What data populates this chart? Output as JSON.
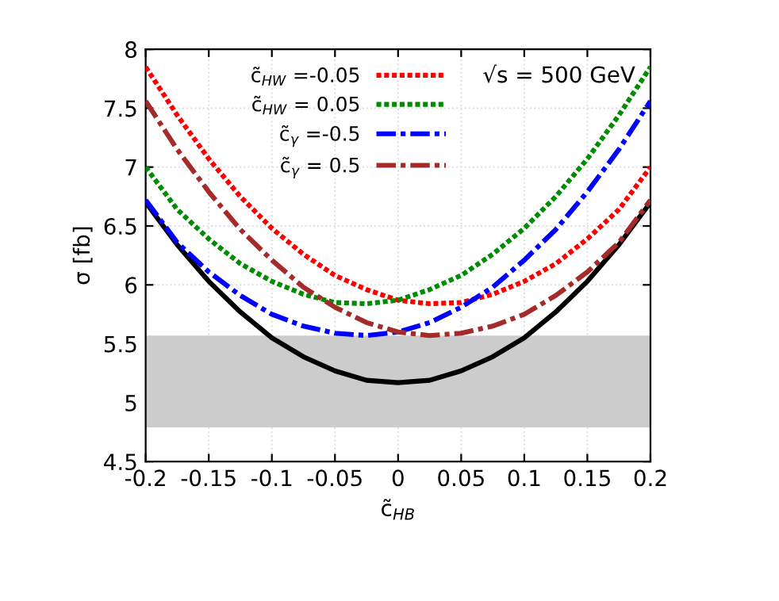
{
  "chart_data": {
    "type": "line",
    "xlabel": "c̃$_{HB}$",
    "ylabel": "σ [fb]",
    "annotations": [
      "√s = 500 GeV"
    ],
    "x": [
      -0.2,
      -0.175,
      -0.15,
      -0.125,
      -0.1,
      -0.075,
      -0.05,
      -0.025,
      0,
      0.025,
      0.05,
      0.075,
      0.1,
      0.125,
      0.15,
      0.175,
      0.2
    ],
    "series": [
      {
        "color": "#000000",
        "line_style": "solid",
        "values": [
          6.7,
          6.34,
          6.03,
          5.77,
          5.55,
          5.39,
          5.27,
          5.19,
          5.17,
          5.19,
          5.27,
          5.39,
          5.55,
          5.77,
          6.03,
          6.34,
          6.7
        ]
      },
      {
        "name": "c̃$_{HW}$ =-0.05",
        "color": "#ff0000",
        "line_style": "dotted",
        "values": [
          7.85,
          7.44,
          7.07,
          6.75,
          6.48,
          6.26,
          6.08,
          5.96,
          5.87,
          5.84,
          5.85,
          5.92,
          6.03,
          6.18,
          6.39,
          6.64,
          7.0
        ]
      },
      {
        "name": "c̃$_{HW}$ = 0.05",
        "color": "#008c00",
        "line_style": "dotted",
        "values": [
          7.0,
          6.64,
          6.39,
          6.18,
          6.03,
          5.92,
          5.85,
          5.84,
          5.87,
          5.96,
          6.08,
          6.26,
          6.48,
          6.75,
          7.07,
          7.44,
          7.85
        ]
      },
      {
        "name": "c̃$_{γ}$ =-0.5",
        "color": "#0000ff",
        "line_style": "dashdot",
        "values": [
          6.72,
          6.36,
          6.11,
          5.91,
          5.75,
          5.65,
          5.59,
          5.57,
          5.6,
          5.68,
          5.81,
          5.98,
          6.21,
          6.47,
          6.79,
          7.15,
          7.56
        ]
      },
      {
        "name": "c̃$_{γ}$ = 0.5",
        "color": "#a52a2a",
        "line_style": "dashdot",
        "values": [
          7.56,
          7.15,
          6.79,
          6.47,
          6.21,
          5.98,
          5.81,
          5.68,
          5.6,
          5.57,
          5.59,
          5.65,
          5.75,
          5.91,
          6.11,
          6.36,
          6.72
        ]
      }
    ],
    "bands": [
      {
        "axis": "y",
        "from": 4.79,
        "to": 5.57,
        "color": "#cccccc"
      }
    ],
    "xlim": [
      -0.2,
      0.2
    ],
    "xticks": [
      -0.2,
      -0.15,
      -0.1,
      -0.05,
      0,
      0.05,
      0.1,
      0.15,
      0.2
    ],
    "ylim": [
      4.5,
      8
    ],
    "yticks": [
      4.5,
      5,
      5.5,
      6,
      6.5,
      7,
      7.5,
      8
    ],
    "grid": true,
    "legend": "top",
    "marker": "none"
  }
}
